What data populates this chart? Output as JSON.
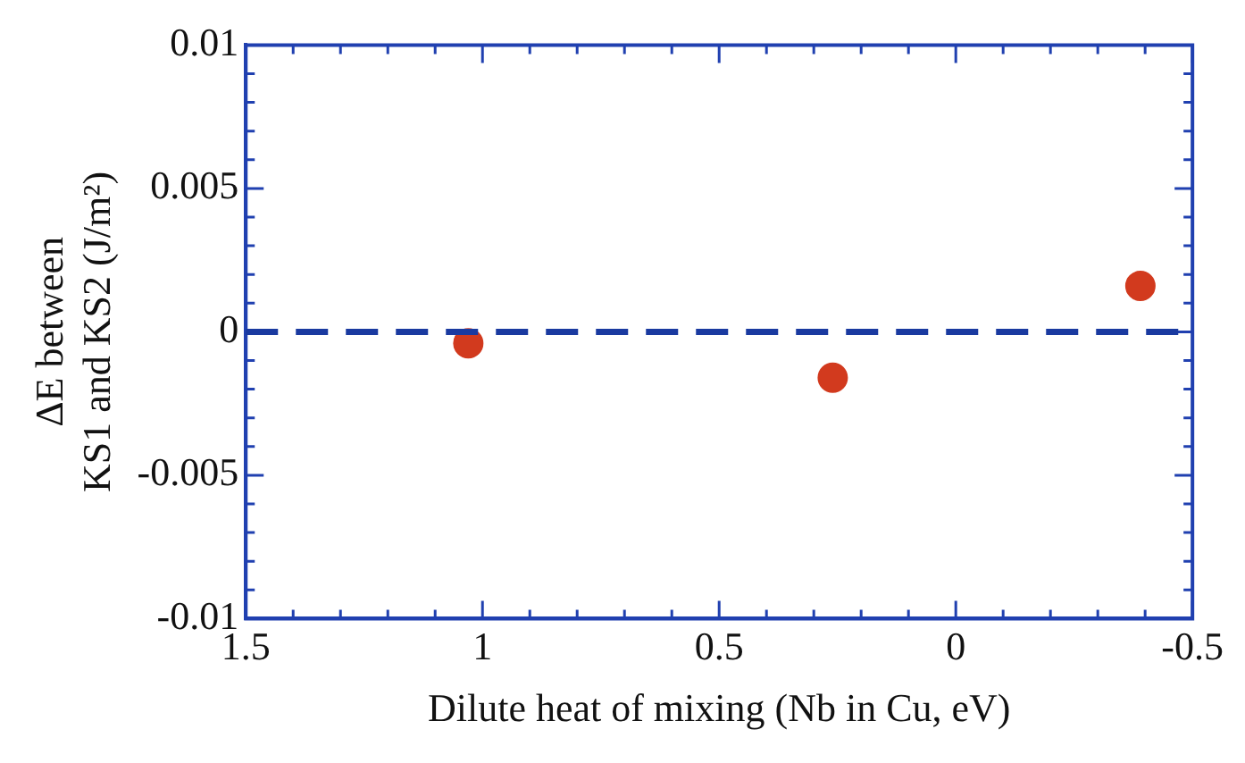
{
  "chart_data": {
    "type": "scatter",
    "xlabel": "Dilute heat of mixing (Nb in Cu, eV)",
    "ylabel": "ΔE between\nKS1 and KS2 (J/m²)",
    "x": [
      1.03,
      0.26,
      -0.39
    ],
    "series": [
      {
        "color": "#d23a1e",
        "values": [
          -0.0004,
          -0.0016,
          0.0016
        ]
      }
    ],
    "marker": "circle",
    "xlim": [
      1.5,
      -0.5
    ],
    "xticks": [
      1.5,
      {
        "value": 1.4,
        "label": null
      },
      {
        "value": 1.3,
        "label": null
      },
      {
        "value": 1.2,
        "label": null
      },
      {
        "value": 1.1,
        "label": null
      },
      1,
      {
        "value": 0.9,
        "label": null
      },
      {
        "value": 0.8,
        "label": null
      },
      {
        "value": 0.7,
        "label": null
      },
      {
        "value": 0.6,
        "label": null
      },
      0.5,
      {
        "value": 0.4,
        "label": null
      },
      {
        "value": 0.3,
        "label": null
      },
      {
        "value": 0.2,
        "label": null
      },
      {
        "value": 0.1,
        "label": null
      },
      0,
      {
        "value": -0.1,
        "label": null
      },
      {
        "value": -0.2,
        "label": null
      },
      {
        "value": -0.3,
        "label": null
      },
      {
        "value": -0.4,
        "label": null
      },
      -0.5
    ],
    "ylim": [
      -0.01,
      0.01
    ],
    "yticks": [
      -0.01,
      {
        "value": -0.009,
        "label": null
      },
      {
        "value": -0.008,
        "label": null
      },
      {
        "value": -0.007,
        "label": null
      },
      {
        "value": -0.006,
        "label": null
      },
      -0.005,
      {
        "value": -0.004,
        "label": null
      },
      {
        "value": -0.003,
        "label": null
      },
      {
        "value": -0.002,
        "label": null
      },
      {
        "value": -0.001,
        "label": null
      },
      0,
      {
        "value": 0.001,
        "label": null
      },
      {
        "value": 0.002,
        "label": null
      },
      {
        "value": 0.003,
        "label": null
      },
      {
        "value": 0.004,
        "label": null
      },
      0.005,
      {
        "value": 0.006,
        "label": null
      },
      {
        "value": 0.007,
        "label": null
      },
      {
        "value": 0.008,
        "label": null
      },
      {
        "value": 0.009,
        "label": null
      },
      0.01
    ],
    "ref_lines": [
      {
        "axis": "y",
        "value": 0,
        "color": "#1a3aa0",
        "line_style": "dashed"
      }
    ],
    "grid": false,
    "legend": false
  }
}
